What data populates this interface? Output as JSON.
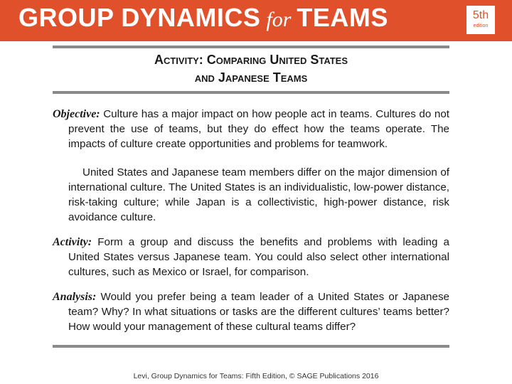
{
  "header": {
    "title_part1": "GROUP DYNAMICS",
    "title_for": "for",
    "title_part2": "TEAMS",
    "edition_number": "5th",
    "edition_word": "edition",
    "accent_color": "#e0502a"
  },
  "title": {
    "line1": "Activity: Comparing United States",
    "line2": "and Japanese Teams"
  },
  "objective": {
    "label": "Objective:",
    "text": " Culture has a major impact on how people act in teams. Cultures do not prevent the use of teams, but they do effect how the teams operate. The impacts of culture create opportunities and problems for teamwork."
  },
  "culture_paragraph": "United States and Japanese team members differ on the major dimension of international culture. The United States is an individualistic, low-power distance, risk-taking culture; while Japan is a collectivistic, high-power distance, risk avoidance culture.",
  "activity": {
    "label": "Activity:",
    "text": " Form a group and discuss the benefits and problems with leading a United States versus Japanese team. You could also select other international cultures, such as Mexico or Israel, for comparison."
  },
  "analysis": {
    "label": "Analysis:",
    "text": " Would you prefer being a team leader of a United States or Japanese team? Why? In what situations or tasks are the different cultures’ teams better? How would your management of these cultural teams differ?"
  },
  "footer": "Levi, Group Dynamics for Teams: Fifth Edition, © SAGE Publications 2016"
}
